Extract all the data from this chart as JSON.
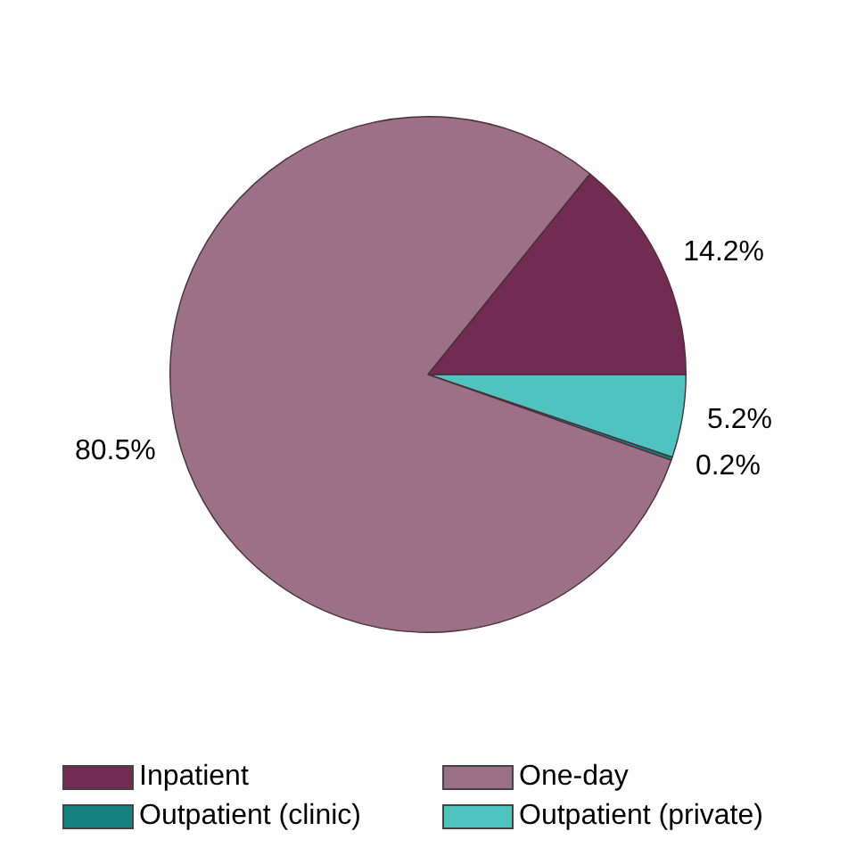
{
  "chart_data": {
    "type": "pie",
    "categories": [
      "Inpatient",
      "One-day",
      "Outpatient (clinic)",
      "Outpatient (private)"
    ],
    "values": [
      14.2,
      80.5,
      0.2,
      5.2
    ],
    "colors": [
      "#722c52",
      "#9c7185",
      "#14837f",
      "#4fc3c0"
    ],
    "value_labels": [
      "14.2%",
      "80.5%",
      "0.2%",
      "5.2%"
    ],
    "legend": "bottom"
  }
}
